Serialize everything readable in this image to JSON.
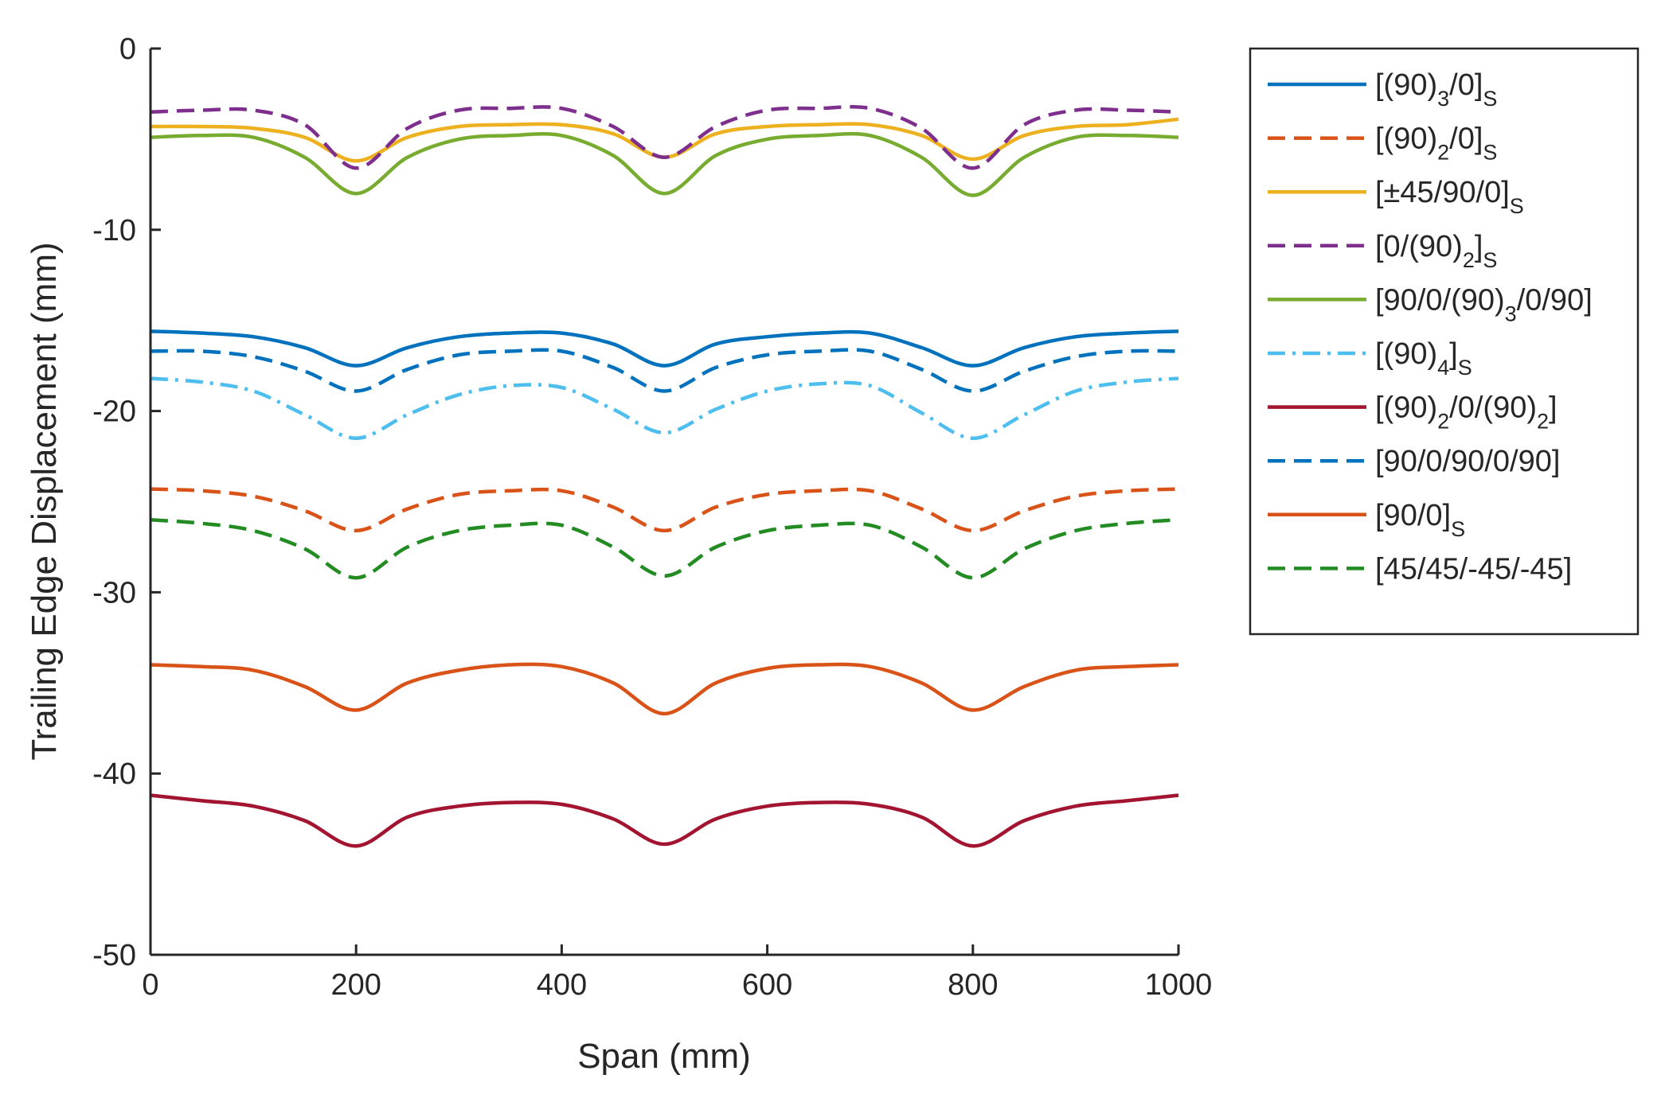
{
  "chart_data": {
    "type": "line",
    "title": "",
    "xlabel": "Span (mm)",
    "ylabel": "Trailing Edge Displacement (mm)",
    "xlim": [
      0,
      1000
    ],
    "ylim": [
      -50,
      0
    ],
    "xticks": [
      0,
      200,
      400,
      600,
      800,
      1000
    ],
    "yticks": [
      0,
      -10,
      -20,
      -30,
      -40,
      -50
    ],
    "xtick_labels": [
      "0",
      "200",
      "400",
      "600",
      "800",
      "1000"
    ],
    "ytick_labels": [
      "0",
      "-10",
      "-20",
      "-30",
      "-40",
      "-50"
    ],
    "grid": false,
    "legend_position": "outside-right",
    "x": [
      0,
      50,
      100,
      150,
      200,
      250,
      300,
      350,
      400,
      450,
      500,
      550,
      600,
      650,
      700,
      750,
      800,
      850,
      900,
      950,
      1000
    ],
    "series": [
      {
        "name": "[(90)3/0]S",
        "label": {
          "main": "[(90)",
          "sub1": "3",
          "mid": "/0]",
          "sub2": "S",
          "end": ""
        },
        "color": "#0072BD",
        "dash": "solid",
        "values": [
          -15.6,
          -15.7,
          -15.9,
          -16.5,
          -17.5,
          -16.5,
          -15.9,
          -15.7,
          -15.7,
          -16.3,
          -17.5,
          -16.3,
          -15.9,
          -15.7,
          -15.7,
          -16.5,
          -17.5,
          -16.5,
          -15.9,
          -15.7,
          -15.6
        ]
      },
      {
        "name": "[(90)2/0]S",
        "label": {
          "main": "[(90)",
          "sub1": "2",
          "mid": "/0]",
          "sub2": "S",
          "end": ""
        },
        "color": "#D95319",
        "dash": "dashed",
        "values": [
          -24.3,
          -24.4,
          -24.7,
          -25.5,
          -26.6,
          -25.4,
          -24.6,
          -24.4,
          -24.4,
          -25.3,
          -26.6,
          -25.3,
          -24.6,
          -24.4,
          -24.4,
          -25.4,
          -26.6,
          -25.5,
          -24.7,
          -24.4,
          -24.3
        ]
      },
      {
        "name": "[±45/90/0]S",
        "label": {
          "main": "[±45/90/0]",
          "sub1": "S",
          "mid": "",
          "sub2": "",
          "end": ""
        },
        "color": "#EDB120",
        "dash": "solid",
        "values": [
          -4.3,
          -4.3,
          -4.4,
          -4.9,
          -6.2,
          -4.9,
          -4.3,
          -4.2,
          -4.2,
          -4.7,
          -6.0,
          -4.7,
          -4.3,
          -4.2,
          -4.2,
          -4.8,
          -6.1,
          -4.8,
          -4.3,
          -4.2,
          -3.9
        ]
      },
      {
        "name": "[0/(90)2]S",
        "label": {
          "main": "[0/(90)",
          "sub1": "2",
          "mid": "]",
          "sub2": "S",
          "end": ""
        },
        "color": "#7E2F8E",
        "dash": "dashed",
        "values": [
          -3.5,
          -3.4,
          -3.4,
          -4.2,
          -6.6,
          -4.4,
          -3.4,
          -3.3,
          -3.3,
          -4.3,
          -6.0,
          -4.3,
          -3.4,
          -3.3,
          -3.3,
          -4.4,
          -6.6,
          -4.2,
          -3.4,
          -3.4,
          -3.5
        ]
      },
      {
        "name": "[90/0/(90)3/0/90]",
        "label": {
          "main": "[90/0/(90)",
          "sub1": "3",
          "mid": "/0/90]",
          "sub2": "",
          "end": ""
        },
        "color": "#77AC30",
        "dash": "solid",
        "values": [
          -4.9,
          -4.8,
          -4.9,
          -6.0,
          -8.0,
          -6.0,
          -5.0,
          -4.8,
          -4.8,
          -5.9,
          -8.0,
          -5.9,
          -5.0,
          -4.8,
          -4.8,
          -6.0,
          -8.1,
          -6.0,
          -4.9,
          -4.8,
          -4.9
        ]
      },
      {
        "name": "[(90)4]S",
        "label": {
          "main": "[(90)",
          "sub1": "4",
          "mid": "]",
          "sub2": "S",
          "end": ""
        },
        "color": "#4DBEEE",
        "dash": "dashdot",
        "values": [
          -18.2,
          -18.4,
          -18.9,
          -20.2,
          -21.5,
          -20.2,
          -19.1,
          -18.6,
          -18.7,
          -19.9,
          -21.2,
          -19.9,
          -18.9,
          -18.5,
          -18.6,
          -20.1,
          -21.5,
          -20.2,
          -18.9,
          -18.4,
          -18.2
        ]
      },
      {
        "name": "[(90)2/0/(90)2]",
        "label": {
          "main": "[(90)",
          "sub1": "2",
          "mid": "/0/(90)",
          "sub2": "2",
          "end": "]"
        },
        "color": "#A2142F",
        "dash": "solid",
        "values": [
          -41.2,
          -41.5,
          -41.8,
          -42.6,
          -44.0,
          -42.4,
          -41.8,
          -41.6,
          -41.7,
          -42.5,
          -43.9,
          -42.5,
          -41.8,
          -41.6,
          -41.7,
          -42.4,
          -44.0,
          -42.6,
          -41.8,
          -41.5,
          -41.2
        ]
      },
      {
        "name": "[90/0/90/0/90]",
        "label": {
          "main": "[90/0/90/0/90]",
          "sub1": "",
          "mid": "",
          "sub2": "",
          "end": ""
        },
        "color": "#0072BD",
        "dash": "dashed",
        "values": [
          -16.7,
          -16.7,
          -17.0,
          -17.8,
          -18.9,
          -17.7,
          -16.9,
          -16.7,
          -16.7,
          -17.6,
          -18.9,
          -17.6,
          -16.9,
          -16.7,
          -16.7,
          -17.7,
          -18.9,
          -17.8,
          -17.0,
          -16.7,
          -16.7
        ]
      },
      {
        "name": "[90/0]S",
        "label": {
          "main": "[90/0]",
          "sub1": "S",
          "mid": "",
          "sub2": "",
          "end": ""
        },
        "color": "#D95319",
        "dash": "solid",
        "values": [
          -34.0,
          -34.1,
          -34.3,
          -35.2,
          -36.5,
          -35.0,
          -34.3,
          -34.0,
          -34.1,
          -35.0,
          -36.7,
          -35.0,
          -34.2,
          -34.0,
          -34.1,
          -35.0,
          -36.5,
          -35.2,
          -34.3,
          -34.1,
          -34.0
        ]
      },
      {
        "name": "[45/45/-45/-45]",
        "label": {
          "main": "[45/45/-45/-45]",
          "sub1": "",
          "mid": "",
          "sub2": "",
          "end": ""
        },
        "color": "#228B22",
        "dash": "dashed",
        "values": [
          -26.0,
          -26.2,
          -26.6,
          -27.6,
          -29.2,
          -27.5,
          -26.6,
          -26.3,
          -26.3,
          -27.5,
          -29.1,
          -27.5,
          -26.6,
          -26.3,
          -26.3,
          -27.5,
          -29.2,
          -27.6,
          -26.6,
          -26.2,
          -26.0
        ]
      }
    ]
  }
}
